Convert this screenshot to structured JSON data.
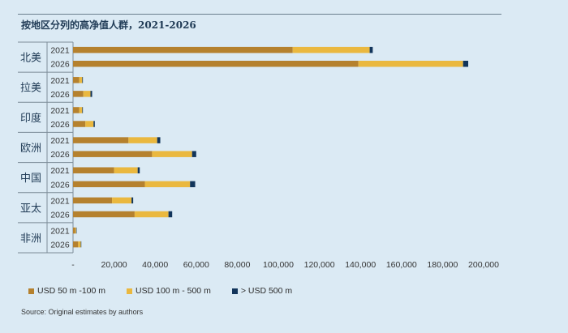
{
  "title": "按地区分列的高净值人群，2021-2026",
  "source": "Source: Original estimates by authors",
  "colors": {
    "s1": "#b5812e",
    "s2": "#eab83f",
    "s3": "#12355b"
  },
  "chart_data": {
    "type": "bar",
    "orientation": "horizontal",
    "stacked": true,
    "title": "按地区分列的高净值人群，2021-2026",
    "xlim": [
      0,
      200000
    ],
    "xticks": [
      0,
      20000,
      40000,
      60000,
      80000,
      100000,
      120000,
      140000,
      160000,
      180000,
      200000
    ],
    "xtick_labels": [
      "-",
      "20,000",
      "40,000",
      "60,000",
      "80,000",
      "100,000",
      "120,000",
      "140,000",
      "160,000",
      "180,000",
      "200,000"
    ],
    "regions": [
      {
        "name": "北美",
        "years": [
          "2021",
          "2026"
        ]
      },
      {
        "name": "拉美",
        "years": [
          "2021",
          "2026"
        ]
      },
      {
        "name": "印度",
        "years": [
          "2021",
          "2026"
        ]
      },
      {
        "name": "欧洲",
        "years": [
          "2021",
          "2026"
        ]
      },
      {
        "name": "中国",
        "years": [
          "2021",
          "2026"
        ]
      },
      {
        "name": "亚太",
        "years": [
          "2021",
          "2026"
        ]
      },
      {
        "name": "非洲",
        "years": [
          "2021",
          "2026"
        ]
      }
    ],
    "series": [
      {
        "name": "USD 50 m -100 m",
        "values": [
          107000,
          139000,
          3000,
          5000,
          3000,
          6000,
          27000,
          38500,
          20000,
          35000,
          19000,
          30000,
          1000,
          2500
        ]
      },
      {
        "name": "USD 100 m - 500 m",
        "values": [
          37500,
          51000,
          1500,
          3500,
          1500,
          4000,
          14000,
          19500,
          11500,
          22000,
          9500,
          16500,
          500,
          1300
        ]
      },
      {
        "name": "> USD 500 m",
        "values": [
          1500,
          2500,
          300,
          800,
          300,
          600,
          1500,
          2000,
          1000,
          2500,
          800,
          1800,
          100,
          200
        ]
      }
    ],
    "legend_position": "bottom"
  }
}
